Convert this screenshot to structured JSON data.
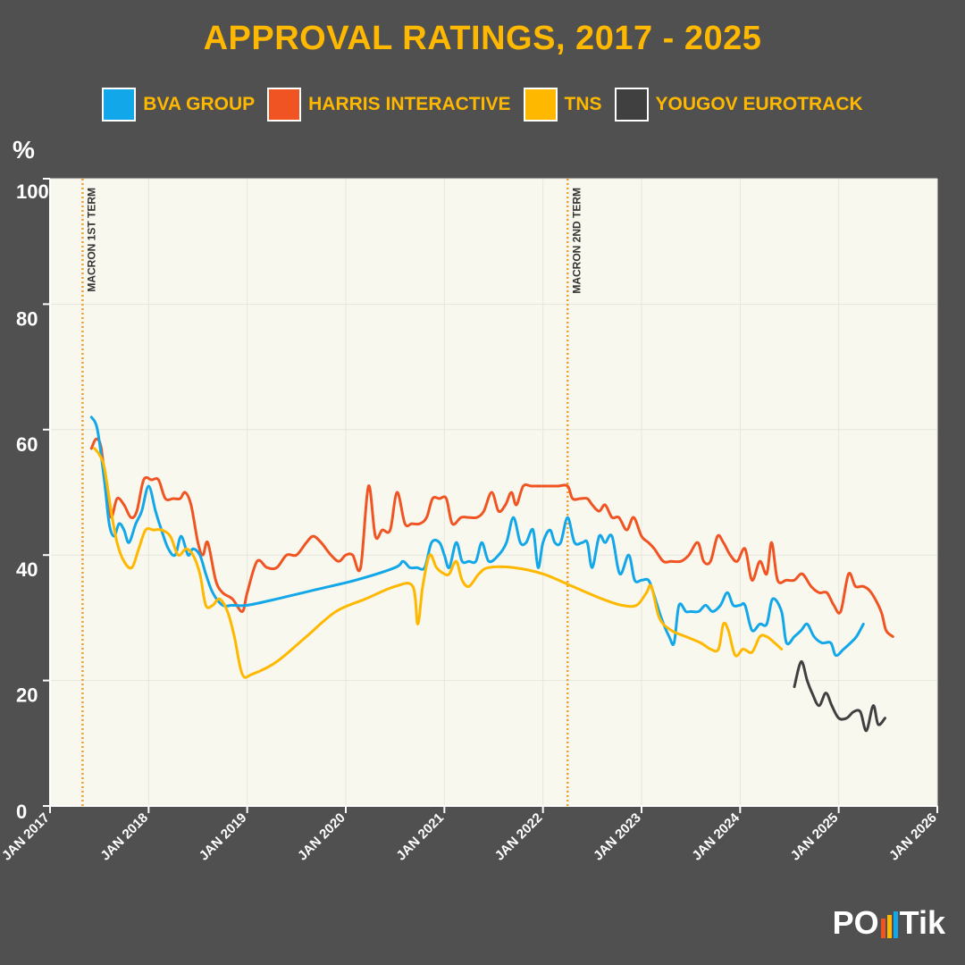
{
  "chart_data": {
    "type": "line",
    "title": "APPROVAL RATINGS, 2017 - 2025",
    "ylabel": "%",
    "xlabel": "",
    "ylim": [
      0,
      100
    ],
    "xlim": [
      2017,
      2026
    ],
    "y_ticks": [
      0,
      20,
      40,
      60,
      80,
      100
    ],
    "x_ticks": [
      {
        "label": "JAN 2017",
        "value": 2017
      },
      {
        "label": "JAN 2018",
        "value": 2018
      },
      {
        "label": "JAN 2019",
        "value": 2019
      },
      {
        "label": "JAN 2020",
        "value": 2020
      },
      {
        "label": "JAN 2021",
        "value": 2021
      },
      {
        "label": "JAN 2022",
        "value": 2022
      },
      {
        "label": "JAN 2023",
        "value": 2023
      },
      {
        "label": "JAN 2024",
        "value": 2024
      },
      {
        "label": "JAN 2025",
        "value": 2025
      },
      {
        "label": "JAN 2026",
        "value": 2026
      }
    ],
    "annotations": [
      {
        "label": "MACRON 1ST TERM",
        "x": 2017.33
      },
      {
        "label": "MACRON 2ND TERM",
        "x": 2022.25
      }
    ],
    "legend_position": "top",
    "series": [
      {
        "name": "BVA GROUP",
        "color": "#12a7e8",
        "points": [
          [
            2017.42,
            62
          ],
          [
            2017.48,
            60
          ],
          [
            2017.55,
            52
          ],
          [
            2017.6,
            45
          ],
          [
            2017.65,
            43
          ],
          [
            2017.7,
            45
          ],
          [
            2017.75,
            44
          ],
          [
            2017.8,
            42
          ],
          [
            2017.87,
            45
          ],
          [
            2017.93,
            47
          ],
          [
            2018.0,
            51
          ],
          [
            2018.07,
            47
          ],
          [
            2018.13,
            44
          ],
          [
            2018.2,
            41
          ],
          [
            2018.27,
            40
          ],
          [
            2018.33,
            43
          ],
          [
            2018.4,
            40
          ],
          [
            2018.45,
            41
          ],
          [
            2018.52,
            40
          ],
          [
            2018.58,
            37
          ],
          [
            2018.65,
            34
          ],
          [
            2018.75,
            32
          ],
          [
            2018.85,
            32
          ],
          [
            2019.0,
            32
          ],
          [
            2019.3,
            33
          ],
          [
            2019.7,
            34.5
          ],
          [
            2020.1,
            36
          ],
          [
            2020.5,
            38
          ],
          [
            2020.58,
            39
          ],
          [
            2020.65,
            38
          ],
          [
            2020.72,
            38
          ],
          [
            2020.8,
            38
          ],
          [
            2020.87,
            42
          ],
          [
            2020.95,
            42
          ],
          [
            2021.0,
            40
          ],
          [
            2021.05,
            38
          ],
          [
            2021.12,
            42
          ],
          [
            2021.18,
            39
          ],
          [
            2021.25,
            39
          ],
          [
            2021.32,
            39
          ],
          [
            2021.38,
            42
          ],
          [
            2021.45,
            39
          ],
          [
            2021.55,
            40
          ],
          [
            2021.63,
            42
          ],
          [
            2021.7,
            46
          ],
          [
            2021.77,
            42
          ],
          [
            2021.83,
            42
          ],
          [
            2021.9,
            44
          ],
          [
            2021.95,
            38
          ],
          [
            2022.0,
            42
          ],
          [
            2022.07,
            44
          ],
          [
            2022.12,
            42
          ],
          [
            2022.18,
            42
          ],
          [
            2022.25,
            46
          ],
          [
            2022.32,
            42
          ],
          [
            2022.4,
            42
          ],
          [
            2022.45,
            42
          ],
          [
            2022.5,
            38
          ],
          [
            2022.57,
            43
          ],
          [
            2022.63,
            42
          ],
          [
            2022.7,
            43
          ],
          [
            2022.78,
            37
          ],
          [
            2022.87,
            40
          ],
          [
            2022.93,
            36
          ],
          [
            2023.0,
            36
          ],
          [
            2023.07,
            36
          ],
          [
            2023.12,
            34
          ],
          [
            2023.2,
            30
          ],
          [
            2023.28,
            27
          ],
          [
            2023.33,
            26
          ],
          [
            2023.38,
            32
          ],
          [
            2023.45,
            31
          ],
          [
            2023.5,
            31
          ],
          [
            2023.58,
            31
          ],
          [
            2023.65,
            32
          ],
          [
            2023.72,
            31
          ],
          [
            2023.8,
            32
          ],
          [
            2023.87,
            34
          ],
          [
            2023.93,
            32
          ],
          [
            2024.0,
            32
          ],
          [
            2024.05,
            32
          ],
          [
            2024.12,
            28
          ],
          [
            2024.2,
            29
          ],
          [
            2024.27,
            29
          ],
          [
            2024.33,
            33
          ],
          [
            2024.42,
            31
          ],
          [
            2024.47,
            26
          ],
          [
            2024.55,
            27
          ],
          [
            2024.62,
            28
          ],
          [
            2024.68,
            29
          ],
          [
            2024.75,
            27
          ],
          [
            2024.83,
            26
          ],
          [
            2024.92,
            26
          ],
          [
            2024.97,
            24
          ],
          [
            2025.05,
            25
          ],
          [
            2025.12,
            26
          ],
          [
            2025.18,
            27
          ],
          [
            2025.25,
            29
          ]
        ]
      },
      {
        "name": "HARRIS INTERACTIVE",
        "color": "#f05423",
        "points": [
          [
            2017.42,
            57
          ],
          [
            2017.47,
            58.5
          ],
          [
            2017.52,
            57
          ],
          [
            2017.57,
            50
          ],
          [
            2017.62,
            46
          ],
          [
            2017.68,
            49
          ],
          [
            2017.75,
            48
          ],
          [
            2017.82,
            46
          ],
          [
            2017.88,
            47
          ],
          [
            2017.95,
            52
          ],
          [
            2018.03,
            52
          ],
          [
            2018.1,
            52
          ],
          [
            2018.17,
            49
          ],
          [
            2018.25,
            49
          ],
          [
            2018.32,
            49
          ],
          [
            2018.37,
            50
          ],
          [
            2018.43,
            48
          ],
          [
            2018.5,
            42
          ],
          [
            2018.55,
            40
          ],
          [
            2018.6,
            42
          ],
          [
            2018.68,
            36
          ],
          [
            2018.75,
            34
          ],
          [
            2018.85,
            33
          ],
          [
            2018.95,
            31
          ],
          [
            2019.0,
            34
          ],
          [
            2019.1,
            39
          ],
          [
            2019.2,
            38
          ],
          [
            2019.3,
            38
          ],
          [
            2019.4,
            40
          ],
          [
            2019.5,
            40
          ],
          [
            2019.6,
            42
          ],
          [
            2019.67,
            43
          ],
          [
            2019.75,
            42
          ],
          [
            2019.85,
            40
          ],
          [
            2019.93,
            39
          ],
          [
            2020.0,
            40
          ],
          [
            2020.07,
            40
          ],
          [
            2020.15,
            38
          ],
          [
            2020.23,
            51
          ],
          [
            2020.3,
            43
          ],
          [
            2020.37,
            44
          ],
          [
            2020.45,
            44
          ],
          [
            2020.52,
            50
          ],
          [
            2020.6,
            45
          ],
          [
            2020.67,
            45
          ],
          [
            2020.75,
            45
          ],
          [
            2020.82,
            46
          ],
          [
            2020.88,
            49
          ],
          [
            2020.95,
            49
          ],
          [
            2021.02,
            49
          ],
          [
            2021.08,
            45
          ],
          [
            2021.17,
            46
          ],
          [
            2021.25,
            46
          ],
          [
            2021.33,
            46
          ],
          [
            2021.4,
            47
          ],
          [
            2021.48,
            50
          ],
          [
            2021.55,
            47
          ],
          [
            2021.62,
            48
          ],
          [
            2021.68,
            50
          ],
          [
            2021.73,
            48
          ],
          [
            2021.8,
            51
          ],
          [
            2021.88,
            51
          ],
          [
            2021.95,
            51
          ],
          [
            2022.05,
            51
          ],
          [
            2022.15,
            51
          ],
          [
            2022.25,
            51
          ],
          [
            2022.3,
            49
          ],
          [
            2022.38,
            49
          ],
          [
            2022.45,
            49
          ],
          [
            2022.5,
            48
          ],
          [
            2022.57,
            47
          ],
          [
            2022.63,
            48
          ],
          [
            2022.7,
            46
          ],
          [
            2022.77,
            46
          ],
          [
            2022.85,
            44
          ],
          [
            2022.92,
            46
          ],
          [
            2023.0,
            43
          ],
          [
            2023.07,
            42
          ],
          [
            2023.13,
            41
          ],
          [
            2023.22,
            39
          ],
          [
            2023.3,
            39
          ],
          [
            2023.4,
            39
          ],
          [
            2023.48,
            40
          ],
          [
            2023.57,
            42
          ],
          [
            2023.63,
            39
          ],
          [
            2023.7,
            39
          ],
          [
            2023.77,
            43
          ],
          [
            2023.83,
            42
          ],
          [
            2023.9,
            40
          ],
          [
            2023.97,
            39
          ],
          [
            2024.05,
            41
          ],
          [
            2024.12,
            36
          ],
          [
            2024.2,
            39
          ],
          [
            2024.27,
            37
          ],
          [
            2024.32,
            42
          ],
          [
            2024.38,
            36
          ],
          [
            2024.47,
            36
          ],
          [
            2024.55,
            36
          ],
          [
            2024.63,
            37
          ],
          [
            2024.72,
            35
          ],
          [
            2024.8,
            34
          ],
          [
            2024.88,
            34
          ],
          [
            2024.95,
            32
          ],
          [
            2025.02,
            31
          ],
          [
            2025.1,
            37
          ],
          [
            2025.17,
            35
          ],
          [
            2025.25,
            35
          ],
          [
            2025.33,
            34
          ],
          [
            2025.43,
            31
          ],
          [
            2025.48,
            28
          ],
          [
            2025.55,
            27
          ]
        ]
      },
      {
        "name": "TNS",
        "color": "#ffb800",
        "points": [
          [
            2017.45,
            57
          ],
          [
            2017.5,
            56
          ],
          [
            2017.55,
            54
          ],
          [
            2017.62,
            47
          ],
          [
            2017.68,
            42
          ],
          [
            2017.75,
            39
          ],
          [
            2017.83,
            38
          ],
          [
            2017.9,
            41
          ],
          [
            2017.97,
            44
          ],
          [
            2018.05,
            44
          ],
          [
            2018.13,
            44
          ],
          [
            2018.22,
            43
          ],
          [
            2018.3,
            40
          ],
          [
            2018.38,
            41
          ],
          [
            2018.45,
            40
          ],
          [
            2018.52,
            37
          ],
          [
            2018.58,
            32
          ],
          [
            2018.65,
            32
          ],
          [
            2018.72,
            33
          ],
          [
            2018.8,
            31
          ],
          [
            2018.87,
            27
          ],
          [
            2018.95,
            21
          ],
          [
            2019.05,
            21
          ],
          [
            2019.3,
            23
          ],
          [
            2019.6,
            27
          ],
          [
            2019.9,
            31
          ],
          [
            2020.2,
            33
          ],
          [
            2020.5,
            35
          ],
          [
            2020.68,
            35
          ],
          [
            2020.73,
            29
          ],
          [
            2020.78,
            35
          ],
          [
            2020.85,
            40
          ],
          [
            2020.92,
            38
          ],
          [
            2021.0,
            37
          ],
          [
            2021.05,
            37
          ],
          [
            2021.12,
            39
          ],
          [
            2021.18,
            36
          ],
          [
            2021.25,
            35
          ],
          [
            2021.35,
            37
          ],
          [
            2021.45,
            38
          ],
          [
            2021.7,
            38
          ],
          [
            2022.0,
            37
          ],
          [
            2022.3,
            35
          ],
          [
            2022.6,
            33
          ],
          [
            2022.8,
            32
          ],
          [
            2022.95,
            32
          ],
          [
            2023.05,
            34
          ],
          [
            2023.1,
            35
          ],
          [
            2023.18,
            30
          ],
          [
            2023.3,
            28
          ],
          [
            2023.45,
            27
          ],
          [
            2023.6,
            26
          ],
          [
            2023.7,
            25
          ],
          [
            2023.78,
            25
          ],
          [
            2023.83,
            29
          ],
          [
            2023.88,
            28
          ],
          [
            2023.95,
            24
          ],
          [
            2024.03,
            25
          ],
          [
            2024.12,
            24.5
          ],
          [
            2024.2,
            27
          ],
          [
            2024.27,
            27
          ],
          [
            2024.35,
            26
          ],
          [
            2024.42,
            25
          ]
        ]
      },
      {
        "name": "YOUGOV EUROTRACK",
        "color": "#404040",
        "points": [
          [
            2024.55,
            19
          ],
          [
            2024.62,
            23
          ],
          [
            2024.68,
            20
          ],
          [
            2024.73,
            18
          ],
          [
            2024.8,
            16
          ],
          [
            2024.87,
            18
          ],
          [
            2024.93,
            16
          ],
          [
            2025.0,
            14
          ],
          [
            2025.08,
            14
          ],
          [
            2025.15,
            15
          ],
          [
            2025.22,
            15
          ],
          [
            2025.28,
            12
          ],
          [
            2025.35,
            16
          ],
          [
            2025.4,
            13
          ],
          [
            2025.47,
            14
          ]
        ]
      }
    ]
  },
  "brand": {
    "prefix": "PO",
    "suffix": "Tik",
    "colors": [
      "#f05423",
      "#ffb800",
      "#12a7e8"
    ]
  },
  "colors": {
    "background": "#505050",
    "plot_area": "#f9f8ee",
    "accent": "#ffb800",
    "marker_line": "#f0a030"
  }
}
